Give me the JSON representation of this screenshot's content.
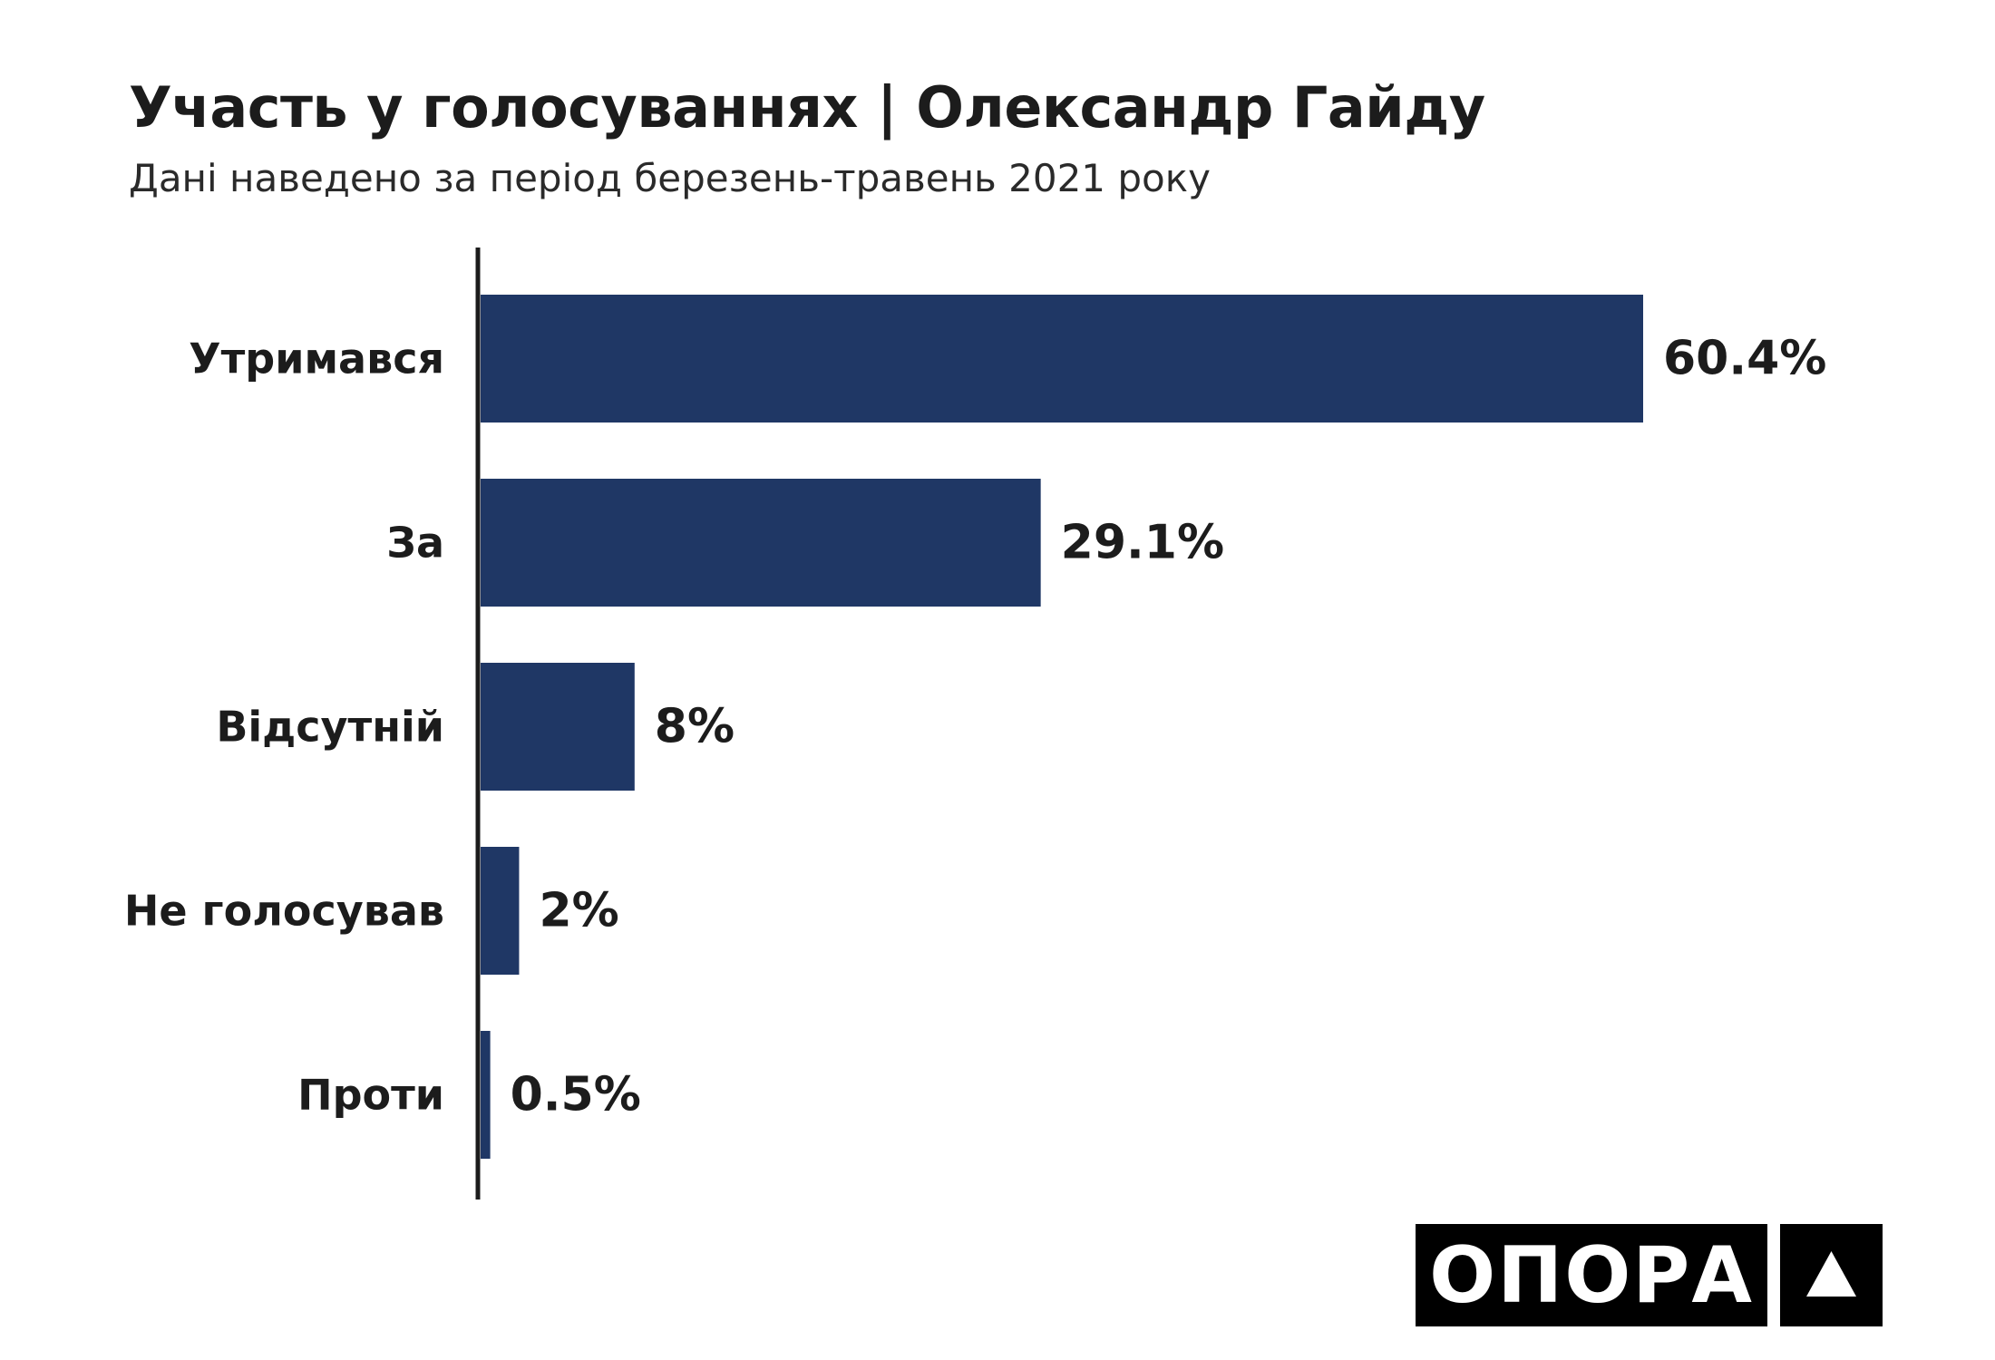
{
  "header": {
    "title": "Участь у голосуваннях | Олександр Гайду",
    "subtitle": "Дані наведено за період березень-травень 2021 року"
  },
  "chart_data": {
    "type": "bar",
    "orientation": "horizontal",
    "categories": [
      "Утримався",
      "За",
      "Відсутній",
      "Не голосував",
      "Проти"
    ],
    "values": [
      60.4,
      29.1,
      8,
      2,
      0.5
    ],
    "value_labels": [
      "60.4%",
      "29.1%",
      "8%",
      "2%",
      "0.5%"
    ],
    "unit": "%",
    "xlim": [
      0,
      60.4
    ],
    "grid": false,
    "legend": "none",
    "bar_color": "#1f3765"
  },
  "logo": {
    "text": "ОПОРА",
    "icon": "triangle-up-icon"
  }
}
